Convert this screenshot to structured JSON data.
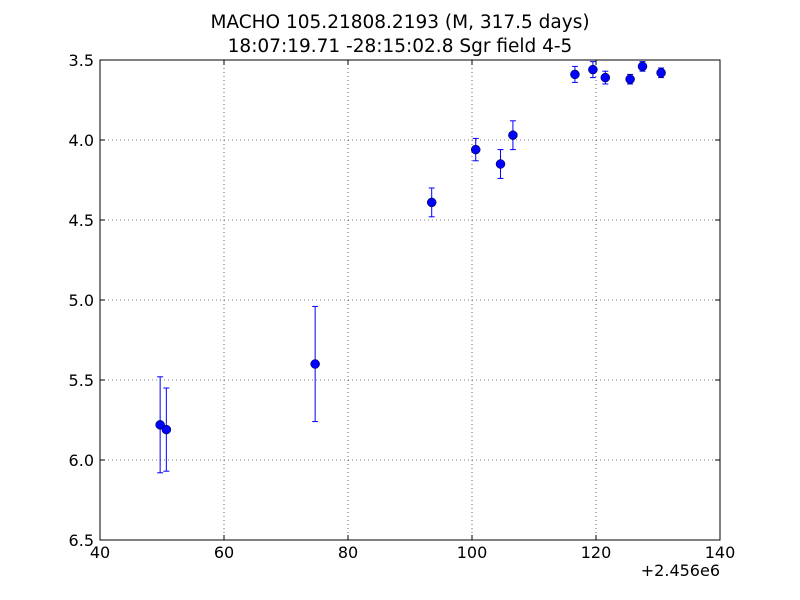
{
  "chart_data": {
    "type": "scatter",
    "title": "MACHO 105.21808.2193 (M, 317.5 days)",
    "subtitle": "18:07:19.71 -28:15:02.8 Sgr field 4-5",
    "x_offset_label": "+2.456e6",
    "xlim": [
      40,
      140
    ],
    "ylim": [
      6.5,
      3.5
    ],
    "y_inverted": true,
    "grid": true,
    "x_ticks": [
      "40",
      "60",
      "80",
      "100",
      "120",
      "140"
    ],
    "y_ticks": [
      "3.5",
      "4.0",
      "4.5",
      "5.0",
      "5.5",
      "6.0",
      "6.5"
    ],
    "x_tick_values": [
      40,
      60,
      80,
      100,
      120,
      140
    ],
    "y_tick_values": [
      3.5,
      4.0,
      4.5,
      5.0,
      5.5,
      6.0,
      6.5
    ],
    "points": [
      {
        "x": 49.7,
        "y": 5.78,
        "err": 0.3
      },
      {
        "x": 50.7,
        "y": 5.81,
        "err": 0.26
      },
      {
        "x": 74.7,
        "y": 5.4,
        "err": 0.36
      },
      {
        "x": 93.5,
        "y": 4.39,
        "err": 0.09
      },
      {
        "x": 100.6,
        "y": 4.06,
        "err": 0.07
      },
      {
        "x": 104.6,
        "y": 4.15,
        "err": 0.09
      },
      {
        "x": 106.6,
        "y": 3.97,
        "err": 0.09
      },
      {
        "x": 116.6,
        "y": 3.59,
        "err": 0.05
      },
      {
        "x": 119.5,
        "y": 3.56,
        "err": 0.05
      },
      {
        "x": 121.5,
        "y": 3.61,
        "err": 0.04
      },
      {
        "x": 125.5,
        "y": 3.62,
        "err": 0.03
      },
      {
        "x": 127.5,
        "y": 3.54,
        "err": 0.03
      },
      {
        "x": 130.5,
        "y": 3.58,
        "err": 0.03
      }
    ],
    "marker_color": "#0000ff",
    "errorbar_color": "#0000ff"
  }
}
